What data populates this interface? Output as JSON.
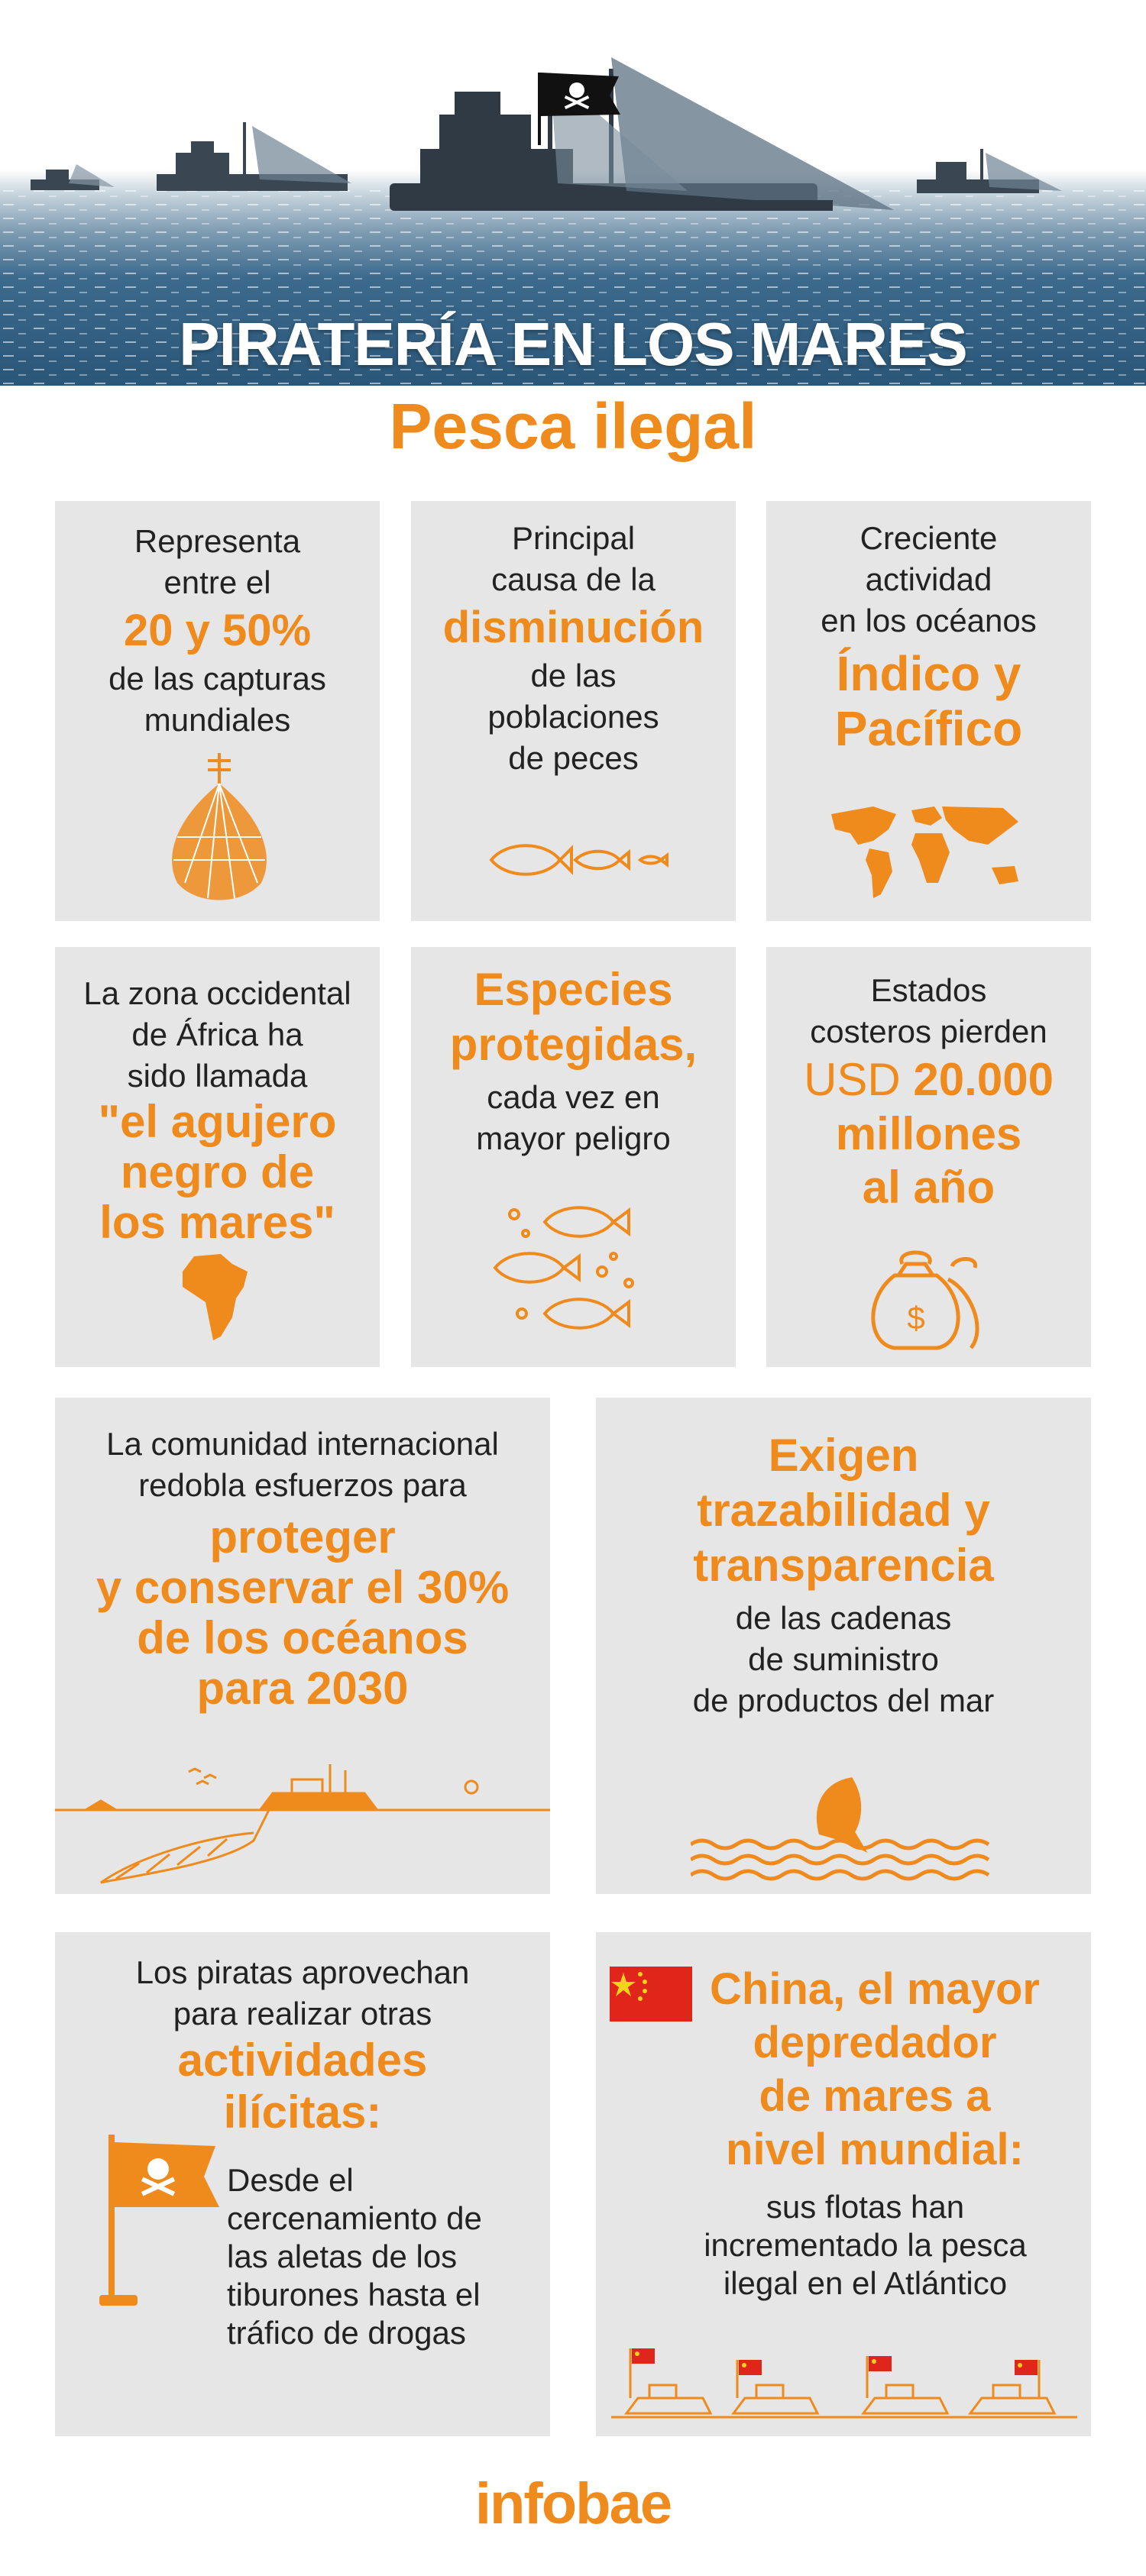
{
  "hero": {
    "title": "PIRATERÍA EN LOS MARES",
    "subtitle": "Pesca ilegal"
  },
  "cards": {
    "c1": {
      "pre": [
        "Representa",
        "entre el"
      ],
      "highlight": "20 y 50%",
      "post": [
        "de las capturas",
        "mundiales"
      ]
    },
    "c2": {
      "pre": [
        "Principal",
        "causa de la"
      ],
      "highlight": "disminución",
      "post": [
        "de las",
        "poblaciones",
        "de peces"
      ]
    },
    "c3": {
      "pre": [
        "Creciente",
        "actividad",
        "en los océanos"
      ],
      "highlight": [
        "Índico y",
        "Pacífico"
      ]
    },
    "c4": {
      "pre": [
        "La zona occidental",
        "de África ha",
        "sido llamada"
      ],
      "highlight": [
        "\"el agujero",
        "negro de",
        "los mares\""
      ]
    },
    "c5": {
      "highlight": [
        "Especies",
        "protegidas,"
      ],
      "post": [
        "cada vez en",
        "mayor peligro"
      ]
    },
    "c6": {
      "pre": [
        "Estados",
        "costeros pierden"
      ],
      "usd": "USD",
      "amount": "20.000",
      "highlight": [
        "millones",
        "al año"
      ]
    },
    "c7": {
      "pre": [
        "La comunidad internacional",
        "redobla esfuerzos para"
      ],
      "highlight": [
        "proteger",
        "y conservar el 30%",
        "de los océanos",
        "para 2030"
      ]
    },
    "c8": {
      "highlight": [
        "Exigen",
        "trazabilidad y",
        "transparencia"
      ],
      "post": [
        "de las cadenas",
        "de suministro",
        "de productos del mar"
      ]
    },
    "c9": {
      "pre": [
        "Los piratas aprovechan",
        "para realizar otras"
      ],
      "highlight": [
        "actividades",
        "ilícitas:"
      ],
      "post": [
        "Desde el",
        "cercenamiento de",
        "las aletas de los",
        "tiburones hasta el",
        "tráfico de drogas"
      ]
    },
    "c10": {
      "highlight": [
        "China, el mayor",
        "depredador",
        "de mares a",
        "nivel mundial:"
      ],
      "post": [
        "sus flotas han",
        "incrementado la pesca",
        "ilegal en el Atlántico"
      ]
    }
  },
  "footer": {
    "logo": "infobae"
  },
  "colors": {
    "accent": "#ef8a1d",
    "card_bg": "#e6e6e6",
    "flag_red": "#e0261a",
    "flag_star": "#f7d21c"
  },
  "icons": [
    "fishing-net-icon",
    "fish-icon",
    "world-map-icon",
    "africa-icon",
    "fish-group-icon",
    "money-bag-icon",
    "ship-net-icon",
    "fish-jump-icon",
    "pirate-flag-icon",
    "china-flag-icon",
    "fishing-boats-icon"
  ]
}
